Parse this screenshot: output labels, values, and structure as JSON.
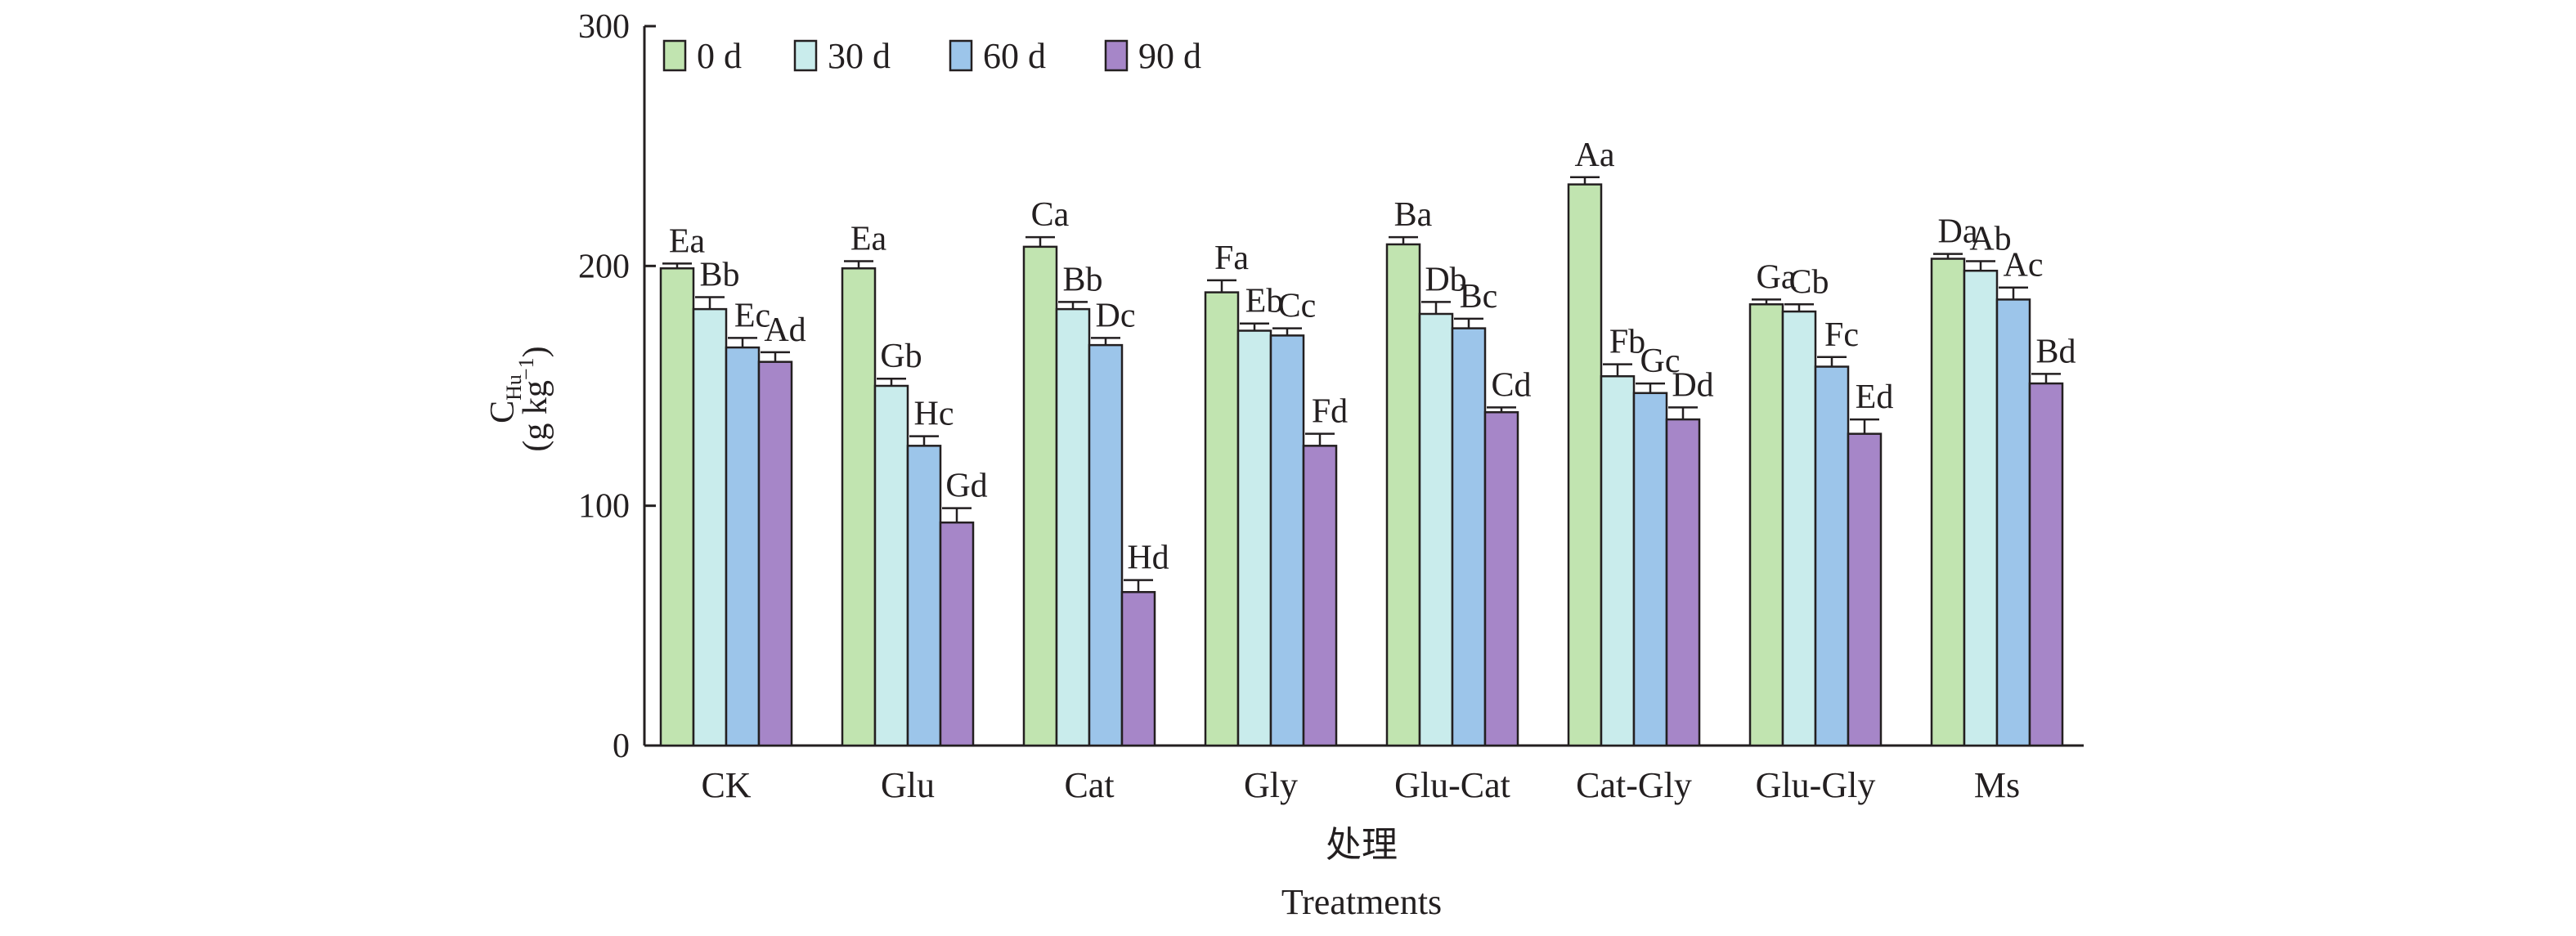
{
  "chart_data": {
    "type": "bar",
    "categories": [
      "CK",
      "Glu",
      "Cat",
      "Gly",
      "Glu-Cat",
      "Cat-Gly",
      "Glu-Gly",
      "Ms"
    ],
    "ylabel_main": "C",
    "ylabel_sub": "Hu",
    "ylabel_unit": "(g kg",
    "ylabel_unit_sup": "−1",
    "ylabel_unit_close": ")",
    "xlabel_cn": "处理",
    "xlabel": "Treatments",
    "ylim": [
      0,
      300
    ],
    "yticks": [
      0,
      100,
      200,
      300
    ],
    "legend_position": "top-left",
    "series": [
      {
        "name": "0 d",
        "color": "#c1e4b0",
        "values": [
          199,
          199,
          208,
          189,
          209,
          234,
          184,
          203
        ],
        "errors": [
          2,
          3,
          4,
          5,
          3,
          3,
          2,
          2
        ],
        "labels": [
          "Ea",
          "Ea",
          "Ca",
          "Fa",
          "Ba",
          "Aa",
          "Ga",
          "Da"
        ]
      },
      {
        "name": "30 d",
        "color": "#c9ecec",
        "values": [
          182,
          150,
          182,
          173,
          180,
          154,
          181,
          198
        ],
        "errors": [
          5,
          3,
          3,
          3,
          5,
          5,
          3,
          4
        ],
        "labels": [
          "Bb",
          "Gb",
          "Bb",
          "Eb",
          "Db",
          "Fb",
          "Cb",
          "Ab"
        ]
      },
      {
        "name": "60 d",
        "color": "#9cc5ea",
        "values": [
          166,
          125,
          167,
          171,
          174,
          147,
          158,
          186
        ],
        "errors": [
          4,
          4,
          3,
          3,
          4,
          4,
          4,
          5
        ],
        "labels": [
          "Ec",
          "Hc",
          "Dc",
          "Cc",
          "Bc",
          "Gc",
          "Fc",
          "Ac"
        ]
      },
      {
        "name": "90 d",
        "color": "#a686c8",
        "values": [
          160,
          93,
          64,
          125,
          139,
          136,
          130,
          151
        ],
        "errors": [
          4,
          6,
          5,
          5,
          2,
          5,
          6,
          4
        ],
        "labels": [
          "Ad",
          "Gd",
          "Hd",
          "Fd",
          "Cd",
          "Dd",
          "Ed",
          "Bd"
        ]
      }
    ]
  }
}
